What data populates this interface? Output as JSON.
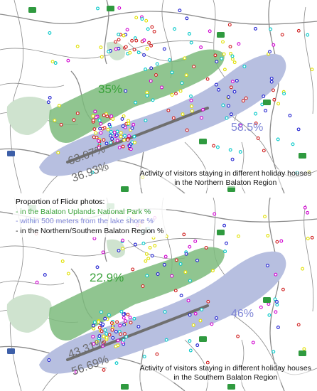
{
  "maps": [
    {
      "id": "north",
      "caption_line1": "Activity of visitors staying in different holiday houses",
      "caption_line2": "in the Northern Balaton Region",
      "national_park_pct": "35%",
      "lake_shore_pct": "58.5%",
      "region_north_pct": "63.07%",
      "region_south_pct": "36.93%"
    },
    {
      "id": "south",
      "caption_line1": "Activity of visitors staying in different holiday houses",
      "caption_line2": "in the Southern Balaton Region",
      "national_park_pct": "22.9%",
      "lake_shore_pct": "46%",
      "region_north_pct": "43.31%",
      "region_south_pct": "56.69%"
    }
  ],
  "legend": {
    "title": "Proportion of Flickr photos:",
    "items": [
      {
        "text": "- in the Balaton Uplands National Park %",
        "color": "#3aa23a"
      },
      {
        "text": "- within 500 meters from the lake shore %",
        "color": "#7f86d6"
      },
      {
        "text": "- in the Northern/Southern Balaton Region %",
        "color": "#111111"
      }
    ]
  },
  "colors": {
    "lake": "#b7bfe0",
    "park": "#7dbb7d",
    "park_light": "#cfe3cf",
    "road": "#8a8a8a",
    "pct_park": "#3aa23a",
    "pct_lake": "#7f86d6",
    "pct_region": "#6b6b6b",
    "divider": "#6f6f6f",
    "shield": "#2f9a3f",
    "shield_blue": "#3d5fa8",
    "dots": [
      "#d000d0",
      "#2020d0",
      "#00c8c8",
      "#e0e000",
      "#d02020"
    ]
  }
}
